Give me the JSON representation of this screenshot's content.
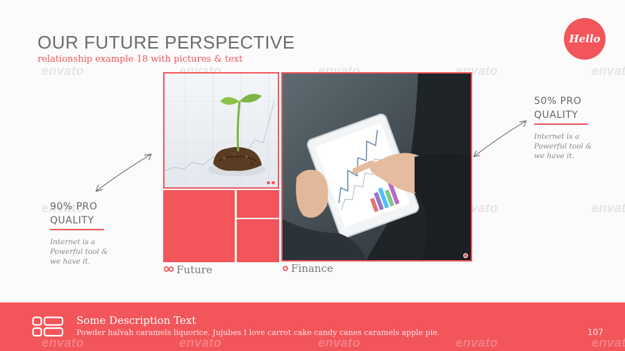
{
  "header": {
    "title": "OUR FUTURE PERSPECTIVE",
    "subtitle": "relationship example 18 with pictures & text",
    "badge": "Hello"
  },
  "watermark": "envato",
  "captions": {
    "future": "Future",
    "finance": "Finance"
  },
  "left_block": {
    "heading_line1": "90% PRO",
    "heading_line2": "QUALITY",
    "text_line1": "Internet is a",
    "text_line2": "Powerful tool &",
    "text_line3": "we have it."
  },
  "right_block": {
    "heading_line1": "50% PRO",
    "heading_line2": "QUALITY",
    "text_line1": "Internet is a",
    "text_line2": "Powerful tool &",
    "text_line3": "we have it."
  },
  "footer": {
    "title": "Some Description Text",
    "text": "Powder halvah caramels liquorice. Jujubes I love carrot cake candy canes caramels apple pie.",
    "page": "107"
  },
  "colors": {
    "accent": "#f2555a",
    "text": "#666666",
    "background": "#fbfbfb"
  },
  "icons": {
    "badge": "hello-badge-icon",
    "footer": "list-icon",
    "future": "double-dot-icon",
    "finance": "dot-icon"
  }
}
